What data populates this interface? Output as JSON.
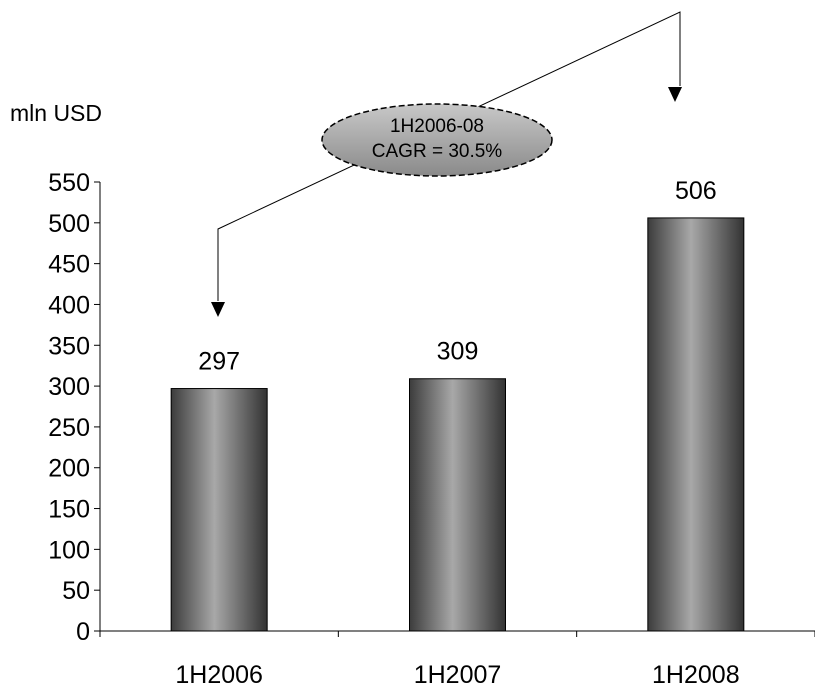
{
  "chart_data": {
    "type": "bar",
    "categories": [
      "1H2006",
      "1H2007",
      "1H2008"
    ],
    "values": [
      297,
      309,
      506
    ],
    "value_labels": [
      "297",
      "309",
      "506"
    ],
    "unit_label": "mln USD",
    "yticks": [
      "0",
      "50",
      "100",
      "150",
      "200",
      "250",
      "300",
      "350",
      "400",
      "450",
      "500",
      "550"
    ],
    "ylim": [
      0,
      550
    ],
    "grid": false,
    "bar_style": "dark grey cylinder gradient",
    "annotation": {
      "line1": "1H2006-08",
      "line2": "CAGR = 30.5%",
      "from_category": "1H2006",
      "to_category": "1H2008"
    }
  }
}
